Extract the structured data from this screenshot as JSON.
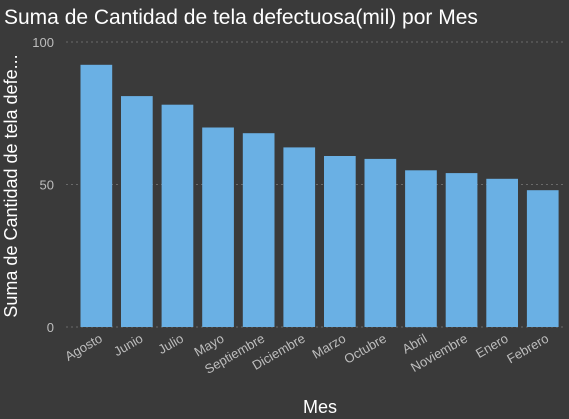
{
  "chart_data": {
    "type": "bar",
    "title": "Suma de Cantidad de tela defectuosa(mil) por Mes",
    "xlabel": "Mes",
    "ylabel": "Suma de Cantidad de tela defe...",
    "categories": [
      "Agosto",
      "Junio",
      "Julio",
      "Mayo",
      "Septiembre",
      "Diciembre",
      "Marzo",
      "Octubre",
      "Abril",
      "Noviembre",
      "Enero",
      "Febrero"
    ],
    "values": [
      92,
      81,
      78,
      70,
      68,
      63,
      60,
      59,
      55,
      54,
      52,
      48
    ],
    "ylim": [
      0,
      100
    ],
    "yticks": [
      "0",
      "50",
      "100"
    ],
    "grid": true,
    "bar_color": "#6ab0e4"
  }
}
